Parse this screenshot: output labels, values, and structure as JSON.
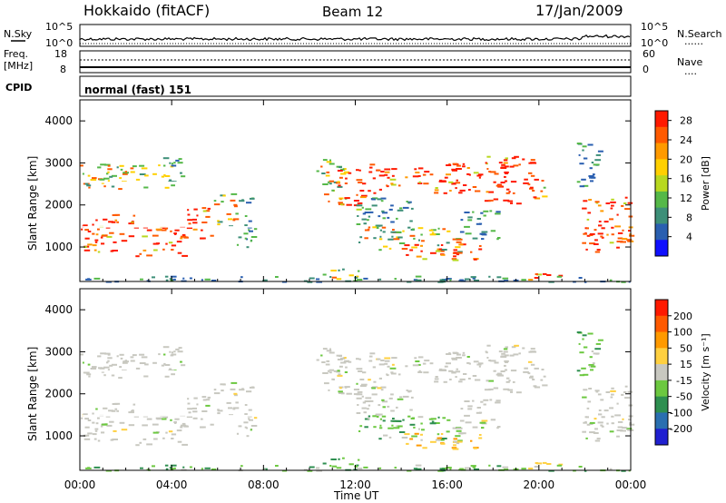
{
  "header": {
    "station": "Hokkaido (fitACF)",
    "beam": "Beam 12",
    "date": "17/Jan/2009"
  },
  "noise_panel": {
    "left_label": "N.Sky",
    "right_label": "N.Search",
    "right_label_line": "......",
    "tick_top": "10^5",
    "tick_bottom": "10^0",
    "tick_right_top": "10^5",
    "tick_right_bottom": "10^0"
  },
  "freq_panel": {
    "left_label_1": "Freq.",
    "left_label_2": "[MHz]",
    "right_label": "Nave",
    "right_label_line": "....",
    "tick_left_top": "18",
    "tick_left_bottom": "8",
    "tick_right_top": "60",
    "tick_right_bottom": "0"
  },
  "cpid_panel": {
    "label": "CPID",
    "value": "normal (fast) 151"
  },
  "axes": {
    "ylabel": "Slant Range [km]",
    "y_ticks": [
      "1000",
      "2000",
      "3000",
      "4000"
    ],
    "xlabel": "Time UT",
    "x_ticks": [
      "00:00",
      "04:00",
      "08:00",
      "12:00",
      "16:00",
      "20:00",
      "00:00"
    ]
  },
  "chart_data": [
    {
      "type": "heatmap",
      "name": "power",
      "x_unit": "hours UT",
      "xlim": [
        0,
        24
      ],
      "ylim": [
        180,
        4500
      ],
      "colorbar": {
        "label": "Power [dB]",
        "ticks": [
          "4",
          "8",
          "12",
          "16",
          "20",
          "24",
          "28"
        ],
        "range": [
          0,
          30
        ],
        "colors": [
          "#1010ff",
          "#2a5fb0",
          "#3d8f78",
          "#55b848",
          "#b8d820",
          "#ffd000",
          "#ff9a00",
          "#ff5a00",
          "#ff1a00"
        ]
      }
    },
    {
      "type": "heatmap",
      "name": "velocity",
      "x_unit": "hours UT",
      "xlim": [
        0,
        24
      ],
      "ylim": [
        180,
        4500
      ],
      "colorbar": {
        "label": "Velocity [m s⁻¹]",
        "ticks": [
          "200",
          "100",
          "50",
          "15",
          "-15",
          "-50",
          "-100",
          "-200"
        ],
        "colors": [
          "#2020d0",
          "#2a6fb0",
          "#2e8f50",
          "#6cc840",
          "#c8c8c0",
          "#ffd040",
          "#ff9a00",
          "#ff5a00",
          "#ff1a00"
        ]
      }
    }
  ],
  "colors": {
    "gray_velocity": "#c8c8c0",
    "axis": "#000000"
  }
}
